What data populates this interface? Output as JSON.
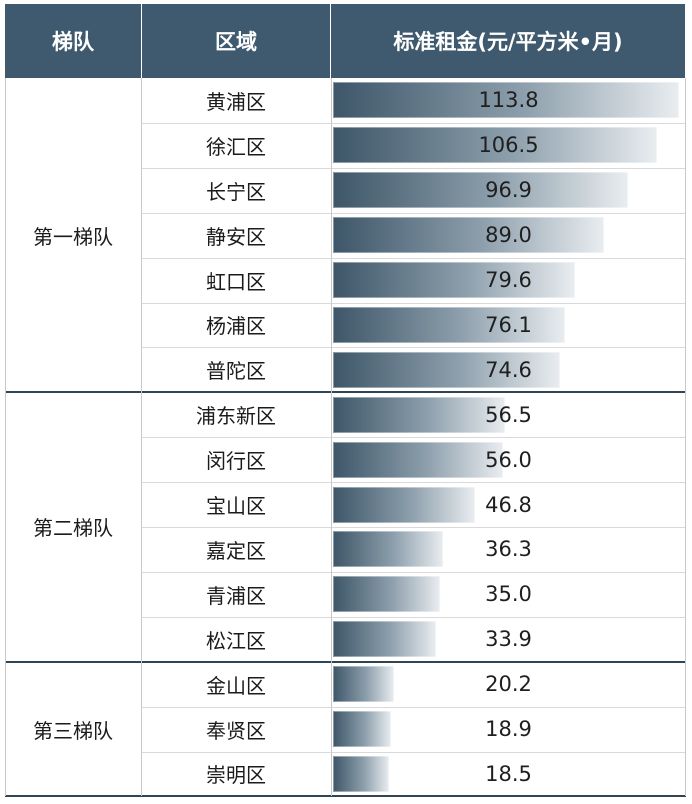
{
  "chart_data": {
    "type": "table",
    "columns": [
      "梯队",
      "区域",
      "标准租金(元/平方米•月)"
    ],
    "tiers": [
      {
        "label": "第一梯队",
        "districts": [
          {
            "name": "黄浦区",
            "value": 113.8
          },
          {
            "name": "徐汇区",
            "value": 106.5
          },
          {
            "name": "长宁区",
            "value": 96.9
          },
          {
            "name": "静安区",
            "value": 89.0
          },
          {
            "name": "虹口区",
            "value": 79.6
          },
          {
            "name": "杨浦区",
            "value": 76.1
          },
          {
            "name": "普陀区",
            "value": 74.6
          }
        ]
      },
      {
        "label": "第二梯队",
        "districts": [
          {
            "name": "浦东新区",
            "value": 56.5
          },
          {
            "name": "闵行区",
            "value": 56.0
          },
          {
            "name": "宝山区",
            "value": 46.8
          },
          {
            "name": "嘉定区",
            "value": 36.3
          },
          {
            "name": "青浦区",
            "value": 35.0
          },
          {
            "name": "松江区",
            "value": 33.9
          }
        ]
      },
      {
        "label": "第三梯队",
        "districts": [
          {
            "name": "金山区",
            "value": 20.2
          },
          {
            "name": "奉贤区",
            "value": 18.9
          },
          {
            "name": "崇明区",
            "value": 18.5
          }
        ]
      }
    ],
    "value_format": "one-decimal",
    "colors": {
      "header_bg": "#3f5a6e",
      "bar_dark": "#3d5668",
      "bar_light": "#e9edf0",
      "divider": "#2f4556"
    }
  }
}
